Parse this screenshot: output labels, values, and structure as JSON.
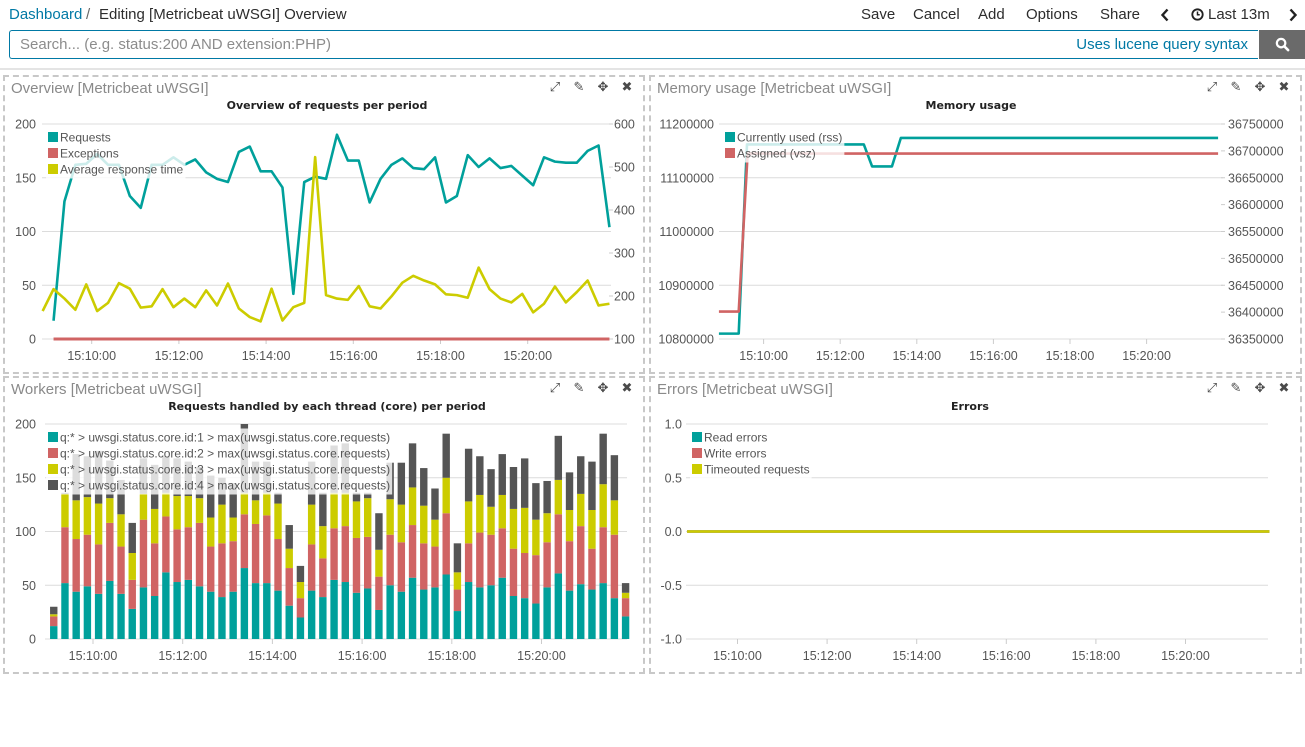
{
  "header": {
    "breadcrumb_root": "Dashboard",
    "breadcrumb_sep": "/",
    "breadcrumb_current": "Editing [Metricbeat uWSGI] Overview",
    "menu": {
      "save": "Save",
      "cancel": "Cancel",
      "add": "Add",
      "options": "Options",
      "share": "Share"
    },
    "time_range": "Last 13m"
  },
  "search": {
    "value": "",
    "placeholder": "Search... (e.g. status:200 AND extension:PHP)",
    "syntax_link": "Uses lucene query syntax"
  },
  "colors": {
    "accent": "#0079a5",
    "search_button": "#6a6a6a"
  },
  "panels": [
    {
      "title": "Overview [Metricbeat uWSGI]"
    },
    {
      "title": "Memory usage [Metricbeat uWSGI]"
    },
    {
      "title": "Workers [Metricbeat uWSGI]"
    },
    {
      "title": "Errors [Metricbeat uWSGI]"
    }
  ],
  "panel_icons": {
    "expand": "⤢",
    "edit": "✎",
    "move": "✥",
    "close": "✖"
  },
  "chart_data": [
    {
      "type": "line",
      "title": "Overview of requests per period",
      "legend": "top-left",
      "grid": true,
      "x": [
        "15:08:45",
        "15:09:00",
        "15:09:15",
        "15:09:30",
        "15:09:45",
        "15:10:00",
        "15:10:15",
        "15:10:30",
        "15:10:45",
        "15:11:00",
        "15:11:15",
        "15:11:30",
        "15:11:45",
        "15:12:00",
        "15:12:15",
        "15:12:30",
        "15:12:45",
        "15:13:00",
        "15:13:15",
        "15:13:30",
        "15:13:45",
        "15:14:00",
        "15:14:15",
        "15:14:30",
        "15:14:45",
        "15:15:00",
        "15:15:15",
        "15:15:30",
        "15:15:45",
        "15:16:00",
        "15:16:15",
        "15:16:30",
        "15:16:45",
        "15:17:00",
        "15:17:15",
        "15:17:30",
        "15:17:45",
        "15:18:00",
        "15:18:15",
        "15:18:30",
        "15:18:45",
        "15:19:00",
        "15:19:15",
        "15:19:30",
        "15:19:45",
        "15:20:00",
        "15:20:15",
        "15:20:30",
        "15:20:45",
        "15:21:00",
        "15:21:15",
        "15:21:30",
        "15:21:45"
      ],
      "xticks": [
        "15:10:00",
        "15:12:00",
        "15:14:00",
        "15:16:00",
        "15:18:00",
        "15:20:00"
      ],
      "y_left": {
        "range": [
          0,
          200
        ],
        "ticks": [
          "0",
          "50",
          "100",
          "150",
          "200"
        ]
      },
      "y_right": {
        "range": [
          100,
          600
        ],
        "ticks": [
          "100",
          "200",
          "300",
          "400",
          "500",
          "600"
        ]
      },
      "series": [
        {
          "name": "Requests",
          "axis": "left",
          "color": "#00a09b",
          "values": [
            null,
            17,
            128,
            162,
            163,
            172,
            162,
            162,
            133,
            122,
            162,
            162,
            169,
            162,
            167,
            155,
            149,
            146,
            174,
            179,
            156,
            156,
            141,
            42,
            146,
            151,
            149,
            190,
            166,
            166,
            127,
            149,
            162,
            168,
            159,
            158,
            169,
            127,
            133,
            171,
            160,
            168,
            159,
            161,
            152,
            143,
            169,
            165,
            164,
            164,
            175,
            180,
            104
          ]
        },
        {
          "name": "Exceptions",
          "axis": "left",
          "color": "#d06464",
          "values": [
            null,
            0,
            0,
            0,
            0,
            0,
            0,
            0,
            0,
            0,
            0,
            0,
            0,
            0,
            0,
            0,
            0,
            0,
            0,
            0,
            0,
            0,
            0,
            0,
            0,
            0,
            0,
            0,
            0,
            0,
            0,
            0,
            0,
            0,
            0,
            0,
            0,
            0,
            0,
            0,
            0,
            0,
            0,
            0,
            0,
            0,
            0,
            0,
            0,
            0,
            0,
            0,
            0
          ]
        },
        {
          "name": "Average response time",
          "axis": "right",
          "color": "#cccc00",
          "values": [
            165,
            216,
            194,
            168,
            227,
            165,
            184,
            230,
            217,
            173,
            176,
            216,
            174,
            194,
            174,
            213,
            178,
            229,
            171,
            151,
            141,
            217,
            143,
            174,
            184,
            523,
            202,
            194,
            191,
            223,
            176,
            171,
            199,
            231,
            247,
            236,
            227,
            204,
            202,
            196,
            266,
            216,
            194,
            185,
            205,
            162,
            182,
            222,
            185,
            209,
            236,
            178,
            182
          ]
        }
      ]
    },
    {
      "type": "line",
      "title": "Memory usage",
      "legend": "top-left",
      "grid": true,
      "xticks": [
        "15:10:00",
        "15:12:00",
        "15:14:00",
        "15:16:00",
        "15:18:00",
        "15:20:00"
      ],
      "y_left": {
        "range": [
          10800000,
          11200000
        ],
        "ticks": [
          "10800000",
          "10900000",
          "11000000",
          "11100000",
          "11200000"
        ]
      },
      "y_right": {
        "range": [
          36350000,
          36750000
        ],
        "ticks": [
          "36350000",
          "36400000",
          "36450000",
          "36500000",
          "36550000",
          "36600000",
          "36650000",
          "36700000",
          "36750000"
        ]
      },
      "series": [
        {
          "name": "Currently used (rss)",
          "axis": "left",
          "color": "#00a09b",
          "points": [
            [
              "15:08:50",
              10810000
            ],
            [
              "15:09:21",
              10810000
            ],
            [
              "15:09:34",
              11162000
            ],
            [
              "15:12:37",
              11162000
            ],
            [
              "15:12:50",
              11121000
            ],
            [
              "15:13:21",
              11121000
            ],
            [
              "15:13:35",
              11174000
            ],
            [
              "15:21:52",
              11174000
            ]
          ]
        },
        {
          "name": "Assigned (vsz)",
          "axis": "right",
          "color": "#d06464",
          "points": [
            [
              "15:08:50",
              36401000
            ],
            [
              "15:09:21",
              36401000
            ],
            [
              "15:09:35",
              36695000
            ],
            [
              "15:21:52",
              36695000
            ]
          ]
        }
      ]
    },
    {
      "type": "bar",
      "stacked": true,
      "title": "Requests handled by each thread (core) per period",
      "legend": "top-left",
      "grid": true,
      "x": [
        "15:09:00",
        "15:09:15",
        "15:09:30",
        "15:09:45",
        "15:10:00",
        "15:10:15",
        "15:10:30",
        "15:10:45",
        "15:11:00",
        "15:11:15",
        "15:11:30",
        "15:11:45",
        "15:12:00",
        "15:12:15",
        "15:12:30",
        "15:12:45",
        "15:13:00",
        "15:13:15",
        "15:13:30",
        "15:13:45",
        "15:14:00",
        "15:14:15",
        "15:14:30",
        "15:14:45",
        "15:15:00",
        "15:15:15",
        "15:15:30",
        "15:15:45",
        "15:16:00",
        "15:16:15",
        "15:16:30",
        "15:16:45",
        "15:17:00",
        "15:17:15",
        "15:17:30",
        "15:17:45",
        "15:18:00",
        "15:18:15",
        "15:18:30",
        "15:18:45",
        "15:19:00",
        "15:19:15",
        "15:19:30",
        "15:19:45",
        "15:20:00",
        "15:20:15",
        "15:20:30",
        "15:20:45",
        "15:21:00",
        "15:21:15",
        "15:21:30",
        "15:21:45"
      ],
      "xticks": [
        "15:10:00",
        "15:12:00",
        "15:14:00",
        "15:16:00",
        "15:18:00",
        "15:20:00"
      ],
      "y_left": {
        "range": [
          0,
          200
        ],
        "ticks": [
          "0",
          "50",
          "100",
          "150",
          "200"
        ]
      },
      "series": [
        {
          "name": "q:* > uwsgi.status.core.id:1 > max(uwsgi.status.core.requests)",
          "color": "#00a09b",
          "values": [
            12,
            52,
            44,
            49,
            42,
            54,
            42,
            28,
            48,
            40,
            62,
            53,
            55,
            49,
            44,
            39,
            44,
            66,
            52,
            52,
            45,
            31,
            20,
            45,
            39,
            55,
            53,
            43,
            47,
            27,
            50,
            44,
            57,
            46,
            48,
            60,
            26,
            53,
            48,
            50,
            57,
            40,
            38,
            33,
            48,
            61,
            45,
            51,
            46,
            52,
            38,
            21
          ]
        },
        {
          "name": "q:* > uwsgi.status.core.id:2 > max(uwsgi.status.core.requests)",
          "color": "#d06464",
          "values": [
            9,
            52,
            49,
            48,
            46,
            54,
            44,
            27,
            63,
            49,
            52,
            49,
            49,
            59,
            42,
            50,
            47,
            50,
            55,
            63,
            48,
            35,
            18,
            43,
            36,
            48,
            52,
            51,
            48,
            31,
            47,
            46,
            49,
            43,
            38,
            57,
            20,
            36,
            51,
            47,
            46,
            44,
            42,
            45,
            42,
            55,
            46,
            54,
            38,
            52,
            59,
            17
          ]
        },
        {
          "name": "q:* > uwsgi.status.core.id:3 > max(uwsgi.status.core.requests)",
          "color": "#cccc00",
          "values": [
            2,
            31,
            36,
            35,
            38,
            23,
            30,
            25,
            24,
            32,
            22,
            31,
            29,
            23,
            27,
            36,
            22,
            20,
            22,
            21,
            33,
            18,
            15,
            37,
            30,
            33,
            31,
            34,
            36,
            25,
            33,
            35,
            35,
            35,
            25,
            33,
            16,
            39,
            35,
            26,
            31,
            37,
            42,
            33,
            27,
            32,
            29,
            30,
            36,
            40,
            32,
            5
          ]
        },
        {
          "name": "q:* > uwsgi.status.core.id:4 > max(uwsgi.status.core.requests)",
          "color": "#555555",
          "values": [
            7,
            1,
            43,
            38,
            49,
            35,
            32,
            28,
            33,
            41,
            34,
            35,
            32,
            29,
            39,
            25,
            32,
            64,
            36,
            29,
            10,
            22,
            15,
            40,
            31,
            44,
            46,
            8,
            5,
            34,
            34,
            39,
            41,
            35,
            29,
            41,
            27,
            49,
            36,
            35,
            38,
            39,
            46,
            34,
            30,
            41,
            35,
            35,
            45,
            47,
            42,
            9
          ]
        }
      ]
    },
    {
      "type": "line",
      "title": "Errors",
      "legend": "top-left",
      "grid": true,
      "x": [
        "15:08:45",
        "15:09:00",
        "15:09:15",
        "15:09:30",
        "15:09:45",
        "15:10:00",
        "15:10:15",
        "15:10:30",
        "15:10:45",
        "15:11:00",
        "15:11:15",
        "15:11:30",
        "15:11:45",
        "15:12:00",
        "15:12:15",
        "15:12:30",
        "15:12:45",
        "15:13:00",
        "15:13:15",
        "15:13:30",
        "15:13:45",
        "15:14:00",
        "15:14:15",
        "15:14:30",
        "15:14:45",
        "15:15:00",
        "15:15:15",
        "15:15:30",
        "15:15:45",
        "15:16:00",
        "15:16:15",
        "15:16:30",
        "15:16:45",
        "15:17:00",
        "15:17:15",
        "15:17:30",
        "15:17:45",
        "15:18:00",
        "15:18:15",
        "15:18:30",
        "15:18:45",
        "15:19:00",
        "15:19:15",
        "15:19:30",
        "15:19:45",
        "15:20:00",
        "15:20:15",
        "15:20:30",
        "15:20:45",
        "15:21:00",
        "15:21:15",
        "15:21:30",
        "15:21:45"
      ],
      "xticks": [
        "15:10:00",
        "15:12:00",
        "15:14:00",
        "15:16:00",
        "15:18:00",
        "15:20:00"
      ],
      "y_left": {
        "range": [
          -1,
          1
        ],
        "ticks": [
          "-1.0",
          "-0.5",
          "0.0",
          "0.5",
          "1.0"
        ]
      },
      "series": [
        {
          "name": "Read errors",
          "axis": "left",
          "color": "#00a09b",
          "values": [
            0,
            0,
            0,
            0,
            0,
            0,
            0,
            0,
            0,
            0,
            0,
            0,
            0,
            0,
            0,
            0,
            0,
            0,
            0,
            0,
            0,
            0,
            0,
            0,
            0,
            0,
            0,
            0,
            0,
            0,
            0,
            0,
            0,
            0,
            0,
            0,
            0,
            0,
            0,
            0,
            0,
            0,
            0,
            0,
            0,
            0,
            0,
            0,
            0,
            0,
            0,
            0,
            0
          ]
        },
        {
          "name": "Write errors",
          "axis": "left",
          "color": "#d06464",
          "values": [
            0,
            0,
            0,
            0,
            0,
            0,
            0,
            0,
            0,
            0,
            0,
            0,
            0,
            0,
            0,
            0,
            0,
            0,
            0,
            0,
            0,
            0,
            0,
            0,
            0,
            0,
            0,
            0,
            0,
            0,
            0,
            0,
            0,
            0,
            0,
            0,
            0,
            0,
            0,
            0,
            0,
            0,
            0,
            0,
            0,
            0,
            0,
            0,
            0,
            0,
            0,
            0,
            0
          ]
        },
        {
          "name": "Timeouted requests",
          "axis": "left",
          "color": "#cccc00",
          "values": [
            0,
            0,
            0,
            0,
            0,
            0,
            0,
            0,
            0,
            0,
            0,
            0,
            0,
            0,
            0,
            0,
            0,
            0,
            0,
            0,
            0,
            0,
            0,
            0,
            0,
            0,
            0,
            0,
            0,
            0,
            0,
            0,
            0,
            0,
            0,
            0,
            0,
            0,
            0,
            0,
            0,
            0,
            0,
            0,
            0,
            0,
            0,
            0,
            0,
            0,
            0,
            0,
            0
          ]
        }
      ]
    }
  ]
}
